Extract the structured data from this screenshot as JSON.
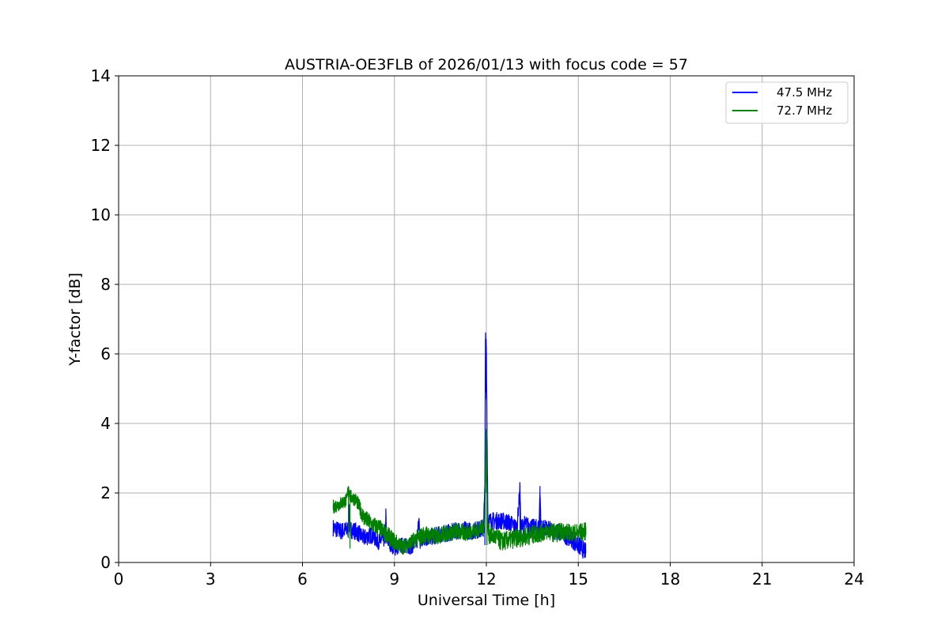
{
  "chart_data": {
    "type": "line",
    "title": "AUSTRIA-OE3FLB of 2026/01/13 with focus code = 57",
    "xlabel": "Universal Time [h]",
    "ylabel": "Y-factor [dB]",
    "xlim": [
      0,
      24
    ],
    "ylim": [
      0,
      14
    ],
    "xticks": [
      0,
      3,
      6,
      9,
      12,
      15,
      18,
      21,
      24
    ],
    "yticks": [
      0,
      2,
      4,
      6,
      8,
      10,
      12,
      14
    ],
    "grid": true,
    "legend_position": "top-right",
    "series": [
      {
        "name": "47.5 MHz",
        "color": "#0000ff",
        "x": [
          7.0,
          7.25,
          7.5,
          7.52,
          7.54,
          7.75,
          8.0,
          8.25,
          8.5,
          8.7,
          8.72,
          8.74,
          9.0,
          9.25,
          9.5,
          9.75,
          9.8,
          9.82,
          9.84,
          10.0,
          10.25,
          10.5,
          10.75,
          11.0,
          11.25,
          11.5,
          11.75,
          11.9,
          11.95,
          11.97,
          12.0,
          12.02,
          12.05,
          12.1,
          12.25,
          12.5,
          12.75,
          13.0,
          13.1,
          13.12,
          13.14,
          13.25,
          13.5,
          13.72,
          13.75,
          13.78,
          14.0,
          14.25,
          14.5,
          14.75,
          15.0,
          15.25
        ],
        "y": [
          1.0,
          0.9,
          0.95,
          1.5,
          0.95,
          0.9,
          0.7,
          0.8,
          0.6,
          0.7,
          1.4,
          0.7,
          0.4,
          0.5,
          0.45,
          0.6,
          1.45,
          0.6,
          0.55,
          0.7,
          0.75,
          0.8,
          0.85,
          0.9,
          0.95,
          0.9,
          0.95,
          1.0,
          2.0,
          6.4,
          6.2,
          4.0,
          1.3,
          1.2,
          1.2,
          1.2,
          1.15,
          1.0,
          2.2,
          1.0,
          1.0,
          1.1,
          1.0,
          1.0,
          2.2,
          1.0,
          0.95,
          0.9,
          0.8,
          0.7,
          0.5,
          0.3
        ],
        "spread": [
          0.5,
          0.5,
          0.5,
          0.4,
          0.5,
          0.5,
          0.5,
          0.5,
          0.5,
          0.5,
          0.4,
          0.5,
          0.45,
          0.45,
          0.45,
          0.5,
          0.4,
          0.5,
          0.5,
          0.5,
          0.5,
          0.5,
          0.5,
          0.5,
          0.5,
          0.5,
          0.5,
          0.5,
          0.6,
          0.5,
          0.5,
          0.6,
          0.5,
          0.5,
          0.5,
          0.5,
          0.5,
          0.5,
          0.4,
          0.5,
          0.5,
          0.5,
          0.5,
          0.5,
          0.4,
          0.5,
          0.5,
          0.5,
          0.5,
          0.5,
          0.55,
          0.5
        ]
      },
      {
        "name": "72.7 MHz",
        "color": "#008000",
        "x": [
          7.0,
          7.25,
          7.45,
          7.5,
          7.55,
          7.75,
          8.0,
          8.25,
          8.5,
          8.75,
          9.0,
          9.25,
          9.5,
          9.75,
          10.0,
          10.25,
          10.5,
          10.75,
          11.0,
          11.25,
          11.5,
          11.75,
          11.95,
          11.98,
          12.0,
          12.02,
          12.05,
          12.1,
          12.25,
          12.5,
          12.75,
          13.0,
          13.25,
          13.5,
          13.75,
          14.0,
          14.25,
          14.5,
          14.75,
          15.0,
          15.25
        ],
        "y": [
          1.6,
          1.7,
          1.8,
          2.2,
          1.9,
          1.8,
          1.3,
          1.1,
          1.0,
          0.8,
          0.6,
          0.45,
          0.55,
          0.7,
          0.8,
          0.75,
          0.8,
          0.85,
          0.9,
          0.85,
          0.9,
          0.95,
          1.0,
          3.8,
          3.5,
          2.0,
          0.9,
          0.8,
          0.75,
          0.6,
          0.65,
          0.7,
          0.75,
          0.8,
          0.85,
          0.9,
          0.85,
          0.9,
          0.85,
          0.85,
          0.9
        ],
        "spread": [
          0.4,
          0.4,
          0.4,
          0.35,
          0.4,
          0.4,
          0.5,
          0.5,
          0.5,
          0.5,
          0.5,
          0.45,
          0.45,
          0.5,
          0.55,
          0.5,
          0.5,
          0.5,
          0.5,
          0.5,
          0.5,
          0.5,
          0.5,
          0.4,
          0.4,
          0.5,
          0.5,
          0.55,
          0.55,
          0.55,
          0.55,
          0.55,
          0.55,
          0.55,
          0.55,
          0.5,
          0.55,
          0.5,
          0.5,
          0.55,
          0.5
        ]
      }
    ]
  }
}
